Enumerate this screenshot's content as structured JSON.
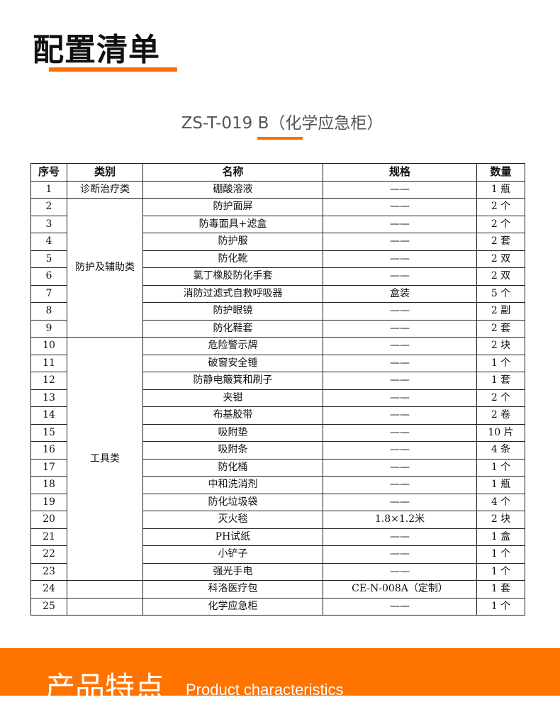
{
  "header": {
    "title": "配置清单",
    "subtitle": "ZS-T-019 B（化学应急柜）",
    "accent": "#ff6f00"
  },
  "table": {
    "columns": [
      "序号",
      "类别",
      "名称",
      "规格",
      "数量"
    ],
    "categories": [
      "诊断治疗类",
      "防护及辅助类",
      "工具类"
    ],
    "rows": [
      {
        "no": "1",
        "name": "硼酸溶液",
        "spec": "——",
        "qty": "1 瓶"
      },
      {
        "no": "2",
        "name": "防护面屏",
        "spec": "——",
        "qty": "2 个"
      },
      {
        "no": "3",
        "name": "防毒面具+滤盒",
        "spec": "——",
        "qty": "2 个"
      },
      {
        "no": "4",
        "name": "防护服",
        "spec": "——",
        "qty": "2 套"
      },
      {
        "no": "5",
        "name": "防化靴",
        "spec": "——",
        "qty": "2 双"
      },
      {
        "no": "6",
        "name": "氯丁橡胶防化手套",
        "spec": "——",
        "qty": "2 双"
      },
      {
        "no": "7",
        "name": "消防过滤式自救呼吸器",
        "spec": "盒装",
        "qty": "5 个"
      },
      {
        "no": "8",
        "name": "防护眼镜",
        "spec": "——",
        "qty": "2 副"
      },
      {
        "no": "9",
        "name": "防化鞋套",
        "spec": "——",
        "qty": "2 套"
      },
      {
        "no": "10",
        "name": "危险警示牌",
        "spec": "——",
        "qty": "2 块"
      },
      {
        "no": "11",
        "name": "破窗安全锤",
        "spec": "——",
        "qty": "1 个"
      },
      {
        "no": "12",
        "name": "防静电簸箕和刷子",
        "spec": "——",
        "qty": "1 套"
      },
      {
        "no": "13",
        "name": "夹钳",
        "spec": "——",
        "qty": "2 个"
      },
      {
        "no": "14",
        "name": "布基胶带",
        "spec": "——",
        "qty": "2 卷"
      },
      {
        "no": "15",
        "name": "吸附垫",
        "spec": "——",
        "qty": "10 片"
      },
      {
        "no": "16",
        "name": "吸附条",
        "spec": "——",
        "qty": "4 条"
      },
      {
        "no": "17",
        "name": "防化桶",
        "spec": "——",
        "qty": "1 个"
      },
      {
        "no": "18",
        "name": "中和洗消剂",
        "spec": "——",
        "qty": "1 瓶"
      },
      {
        "no": "19",
        "name": "防化垃圾袋",
        "spec": "——",
        "qty": "4 个"
      },
      {
        "no": "20",
        "name": "灭火毯",
        "spec": "1.8×1.2米",
        "qty": "2 块"
      },
      {
        "no": "21",
        "name": "PH试纸",
        "spec": "——",
        "qty": "1 盒"
      },
      {
        "no": "22",
        "name": "小铲子",
        "spec": "——",
        "qty": "1 个"
      },
      {
        "no": "23",
        "name": "强光手电",
        "spec": "——",
        "qty": "1 个"
      },
      {
        "no": "24",
        "name": "科洛医疗包",
        "spec": "CE-N-008A（定制）",
        "qty": "1 套"
      },
      {
        "no": "25",
        "name": "化学应急柜",
        "spec": "——",
        "qty": "1 个"
      }
    ]
  },
  "footer": {
    "title_cn": "产品特点",
    "title_en": "Product characteristics",
    "band_color": "#ff7300"
  }
}
